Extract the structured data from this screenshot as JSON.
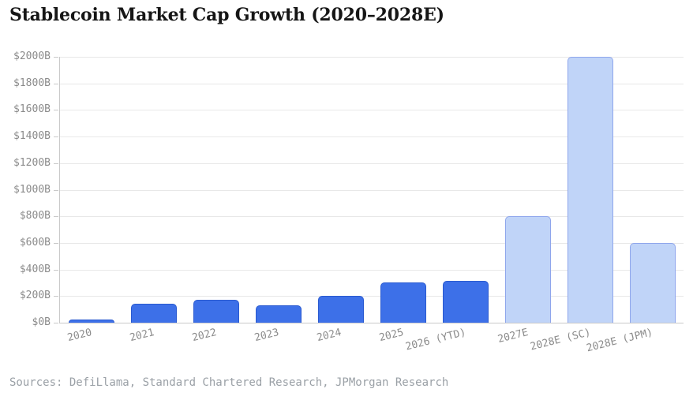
{
  "title": "Stablecoin Market Cap Growth (2020–2028E)",
  "source": "Sources: DefiLlama, Standard Chartered Research, JPMorgan Research",
  "colors": {
    "title_color": "#161616",
    "label": "#8b8b8b",
    "source_color": "#9aa0a6",
    "gridline": "#e8e8e8",
    "axis": "#c9c9c9",
    "actual_fill": "#3d70e8",
    "actual_border": "#2a5ad0",
    "estimate_fill": "#c0d4f8",
    "estimate_border": "#8fa6ec"
  },
  "chart_data": {
    "type": "bar",
    "title": "Stablecoin Market Cap Growth (2020–2028E)",
    "categories": [
      "2020",
      "2021",
      "2022",
      "2023",
      "2024",
      "2025",
      "2026 (YTD)",
      "2027E",
      "2028E (SC)",
      "2028E (JPM)"
    ],
    "values": [
      25,
      140,
      175,
      130,
      200,
      300,
      315,
      800,
      2000,
      600
    ],
    "bar_styles": [
      "actual",
      "actual",
      "actual",
      "actual",
      "actual",
      "actual",
      "actual",
      "estimate",
      "estimate",
      "estimate"
    ],
    "units": "USD billions",
    "xlabel": "",
    "ylabel": "",
    "ylim": [
      0,
      2000
    ],
    "ytick_step": 200,
    "ytick_labels": [
      "$0B",
      "$200B",
      "$400B",
      "$600B",
      "$800B",
      "$1000B",
      "$1200B",
      "$1400B",
      "$1600B",
      "$1800B",
      "$2000B"
    ],
    "grid": "horizontal",
    "legend": "none"
  }
}
